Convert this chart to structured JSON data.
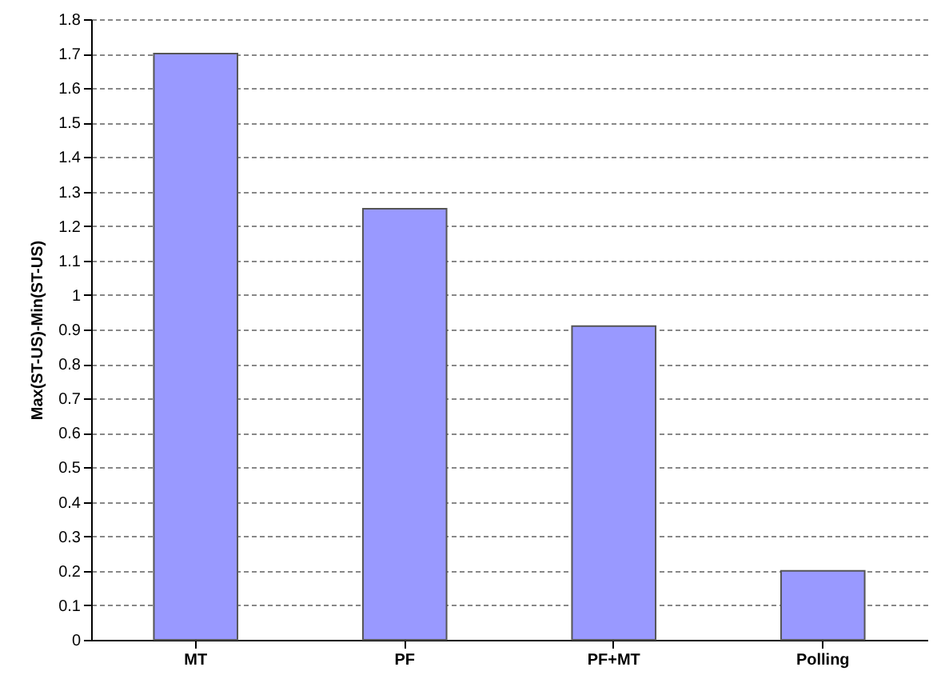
{
  "chart_data": {
    "type": "bar",
    "ylabel": "Max(ST-US)-Min(ST-US)",
    "categories": [
      "MT",
      "PF",
      "PF+MT",
      "Polling"
    ],
    "values": [
      1.7,
      1.25,
      0.91,
      0.2
    ],
    "color": "#9999ff",
    "ylim": [
      0,
      1.8
    ],
    "yticks": [
      0,
      0.1,
      0.2,
      0.3,
      0.4,
      0.5,
      0.6,
      0.7,
      0.8,
      0.9,
      1,
      1.1,
      1.2,
      1.3,
      1.4,
      1.5,
      1.6,
      1.7,
      1.8
    ],
    "grid": "y"
  }
}
